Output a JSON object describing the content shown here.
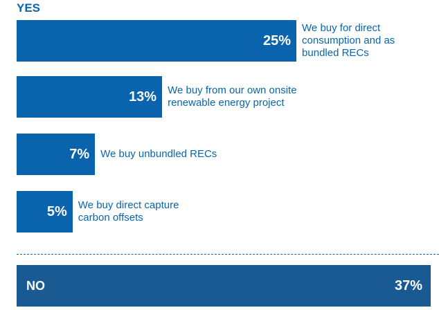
{
  "chart_data": {
    "type": "bar",
    "title": "YES",
    "categories": [
      "We buy for direct consumption and as bundled RECs",
      "We buy from our own onsite renewable energy project",
      "We buy unbundled RECs",
      "We buy direct capture carbon offsets"
    ],
    "values": [
      25,
      13,
      7,
      5
    ],
    "value_labels": [
      "25%",
      "13%",
      "7%",
      "5%"
    ],
    "color": "#0a64ad",
    "other": {
      "label": "NO",
      "value": 37,
      "value_label": "37%",
      "color": "#1a5a93"
    }
  }
}
